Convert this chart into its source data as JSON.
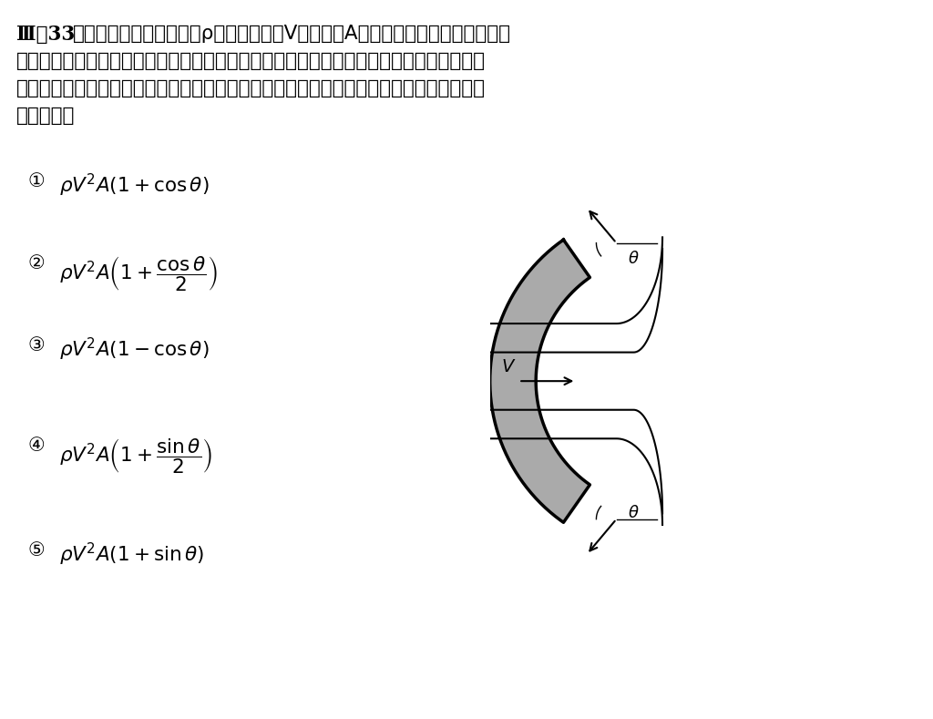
{
  "title": "Ⅲ－33",
  "problem_text_line1": "下図に示すように，密度ρの流体が流速V，断面積Aの噴流となって，曲面状の壁",
  "problem_text_line2": "に衝突して２方向に均等に分かれている。噴流の流出方向は曲面に沿っている。重力と粘",
  "problem_text_line3": "性の影響を無視するとき，噴流が壁に及ぼす力の大きさを表す式として，最も適切なもの",
  "problem_text_line4": "はどれか。",
  "options": [
    {
      "num": "①",
      "formula": "$\\rho V^2 A(1 + \\cos\\theta)$"
    },
    {
      "num": "②",
      "formula": "$\\rho V^2 A\\left(1 + \\dfrac{\\cos\\theta}{2}\\right)$"
    },
    {
      "num": "③",
      "formula": "$\\rho V^2 A(1 - \\cos\\theta)$"
    },
    {
      "num": "④",
      "formula": "$\\rho V^2 A\\left(1 + \\dfrac{\\sin\\theta}{2}\\right)$"
    },
    {
      "num": "⑤",
      "formula": "$\\rho V^2 A(1 + \\sin\\theta)$"
    }
  ],
  "background_color": "#ffffff",
  "text_color": "#000000",
  "wall_fill_color": "#aaaaaa",
  "wall_edge_color": "#000000"
}
